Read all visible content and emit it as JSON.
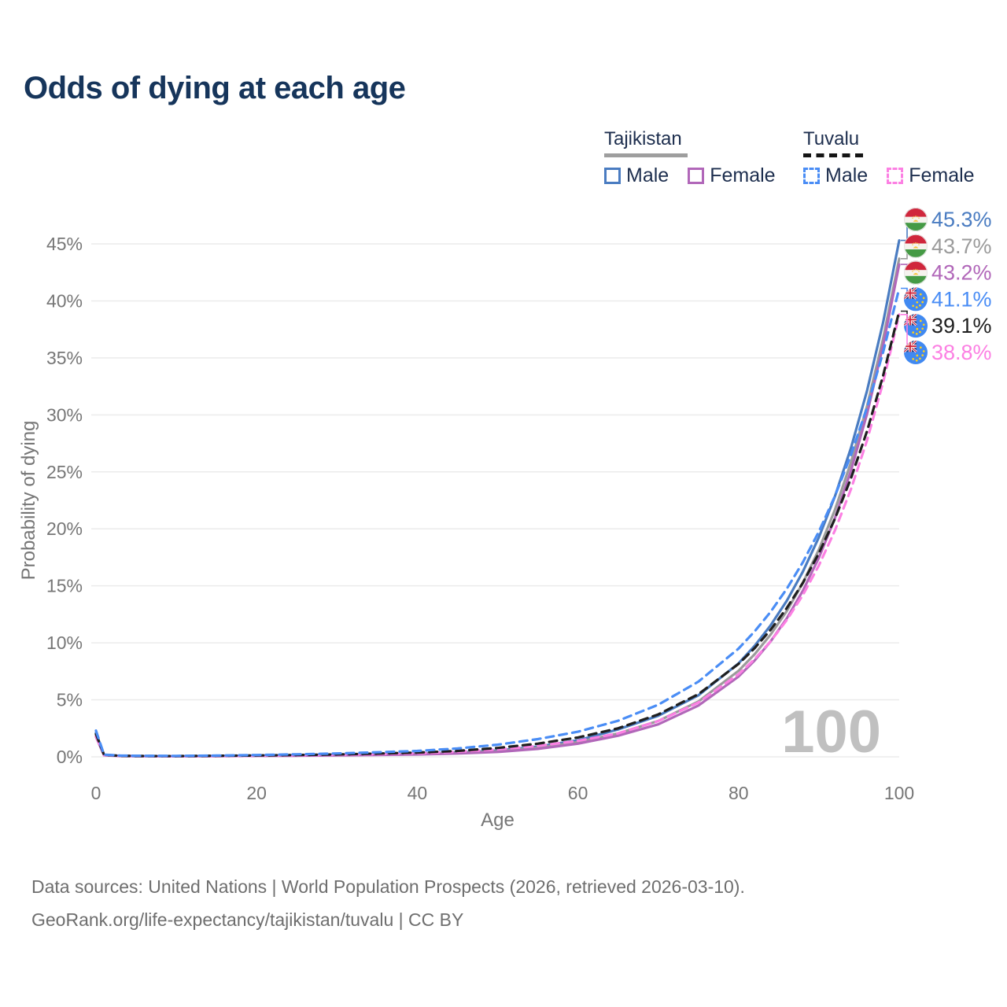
{
  "title": "Odds of dying at each age",
  "legend": {
    "groups": [
      {
        "label": "Tajikistan",
        "style": "solid",
        "underline_color": "#9e9e9e",
        "items": [
          {
            "label": "Male",
            "color": "#4a7cc1",
            "dashed": false
          },
          {
            "label": "Female",
            "color": "#b167b9",
            "dashed": false
          }
        ]
      },
      {
        "label": "Tuvalu",
        "style": "dashed",
        "underline_color": "#151515",
        "items": [
          {
            "label": "Male",
            "color": "#4a8df5",
            "dashed": true
          },
          {
            "label": "Female",
            "color": "#fc80e3",
            "dashed": true
          }
        ]
      }
    ]
  },
  "watermark": "100",
  "footer": {
    "line1": "Data sources: United Nations | World Population Prospects (2026, retrieved 2026-03-10).",
    "line2": "GeoRank.org/life-expectancy/tajikistan/tuvalu | CC BY"
  },
  "chart_data": {
    "type": "line",
    "title": "Odds of dying at each age",
    "xlabel": "Age",
    "ylabel": "Probability of dying",
    "x_ticks": [
      0,
      20,
      40,
      60,
      80,
      100
    ],
    "y_ticks": [
      0,
      5,
      10,
      15,
      20,
      25,
      30,
      35,
      40,
      45
    ],
    "y_tick_suffix": "%",
    "xlim": [
      0,
      100
    ],
    "ylim": [
      0,
      47
    ],
    "grid": true,
    "ages": [
      0,
      1,
      3,
      5,
      10,
      15,
      20,
      25,
      30,
      35,
      40,
      45,
      50,
      55,
      60,
      65,
      70,
      75,
      80,
      82,
      84,
      86,
      88,
      90,
      92,
      94,
      96,
      98,
      100
    ],
    "series": [
      {
        "id": "tajikistan-male",
        "name": "Tajikistan Male",
        "country": "Tajikistan",
        "sex": "Male",
        "color": "#4a7cc1",
        "dashed": false,
        "end_value": 45.3,
        "end_label": "45.3%",
        "values": [
          2.1,
          0.17,
          0.09,
          0.07,
          0.06,
          0.08,
          0.12,
          0.15,
          0.18,
          0.22,
          0.28,
          0.38,
          0.55,
          0.9,
          1.45,
          2.4,
          3.6,
          5.4,
          8.2,
          9.73,
          11.54,
          13.69,
          16.24,
          19.26,
          22.85,
          27.1,
          32.14,
          38.13,
          45.3
        ]
      },
      {
        "id": "tajikistan-total",
        "name": "Tajikistan",
        "country": "Tajikistan",
        "sex": "Both",
        "color": "#9b9b9b",
        "dashed": false,
        "end_value": 43.7,
        "end_label": "43.7%",
        "values": [
          1.9,
          0.16,
          0.08,
          0.06,
          0.05,
          0.07,
          0.1,
          0.13,
          0.16,
          0.2,
          0.25,
          0.34,
          0.5,
          0.8,
          1.3,
          2.05,
          3.15,
          4.85,
          7.55,
          9.0,
          10.73,
          12.79,
          15.25,
          18.18,
          21.67,
          25.83,
          30.79,
          36.7,
          43.7
        ]
      },
      {
        "id": "tajikistan-female",
        "name": "Tajikistan Female",
        "country": "Tajikistan",
        "sex": "Female",
        "color": "#b167b9",
        "dashed": false,
        "end_value": 43.2,
        "end_label": "43.2%",
        "values": [
          1.75,
          0.14,
          0.07,
          0.06,
          0.05,
          0.06,
          0.08,
          0.1,
          0.13,
          0.16,
          0.21,
          0.29,
          0.43,
          0.7,
          1.15,
          1.85,
          2.85,
          4.5,
          7.05,
          8.45,
          10.13,
          12.15,
          14.57,
          17.47,
          20.94,
          25.11,
          30.11,
          36.1,
          43.2
        ]
      },
      {
        "id": "tuvalu-female",
        "name": "Tuvalu Female",
        "country": "Tuvalu",
        "sex": "Female",
        "color": "#fc80e3",
        "dashed": true,
        "end_value": 38.8,
        "end_label": "38.8%",
        "values": [
          1.8,
          0.15,
          0.08,
          0.06,
          0.05,
          0.07,
          0.1,
          0.13,
          0.17,
          0.23,
          0.31,
          0.44,
          0.65,
          0.95,
          1.4,
          2.06,
          3.13,
          4.77,
          7.25,
          8.57,
          10.14,
          12.0,
          14.19,
          16.79,
          19.86,
          23.49,
          27.79,
          32.87,
          38.8
        ]
      },
      {
        "id": "tuvalu-total",
        "name": "Tuvalu",
        "country": "Tuvalu",
        "sex": "Both",
        "color": "#1f1f1f",
        "dashed": true,
        "end_value": 39.1,
        "end_label": "39.1%",
        "values": [
          2.0,
          0.17,
          0.09,
          0.07,
          0.06,
          0.09,
          0.12,
          0.16,
          0.21,
          0.28,
          0.37,
          0.52,
          0.78,
          1.15,
          1.7,
          2.5,
          3.72,
          5.5,
          8.15,
          9.53,
          11.15,
          13.05,
          15.26,
          17.86,
          20.89,
          24.44,
          28.6,
          33.46,
          39.1
        ]
      },
      {
        "id": "tuvalu-male",
        "name": "Tuvalu Male",
        "country": "Tuvalu",
        "sex": "Male",
        "color": "#4a8df5",
        "dashed": true,
        "end_value": 41.1,
        "end_label": "41.1%",
        "values": [
          2.3,
          0.19,
          0.11,
          0.09,
          0.08,
          0.11,
          0.16,
          0.22,
          0.3,
          0.4,
          0.52,
          0.73,
          1.06,
          1.55,
          2.2,
          3.16,
          4.57,
          6.6,
          9.5,
          11.0,
          12.73,
          14.74,
          17.07,
          19.76,
          22.88,
          26.49,
          30.67,
          35.51,
          41.1
        ]
      }
    ],
    "colors": {
      "grid": "#ebebeb",
      "axis_text": "#767676",
      "watermark": "#c0c0c0",
      "tajikistan_flag": {
        "red": "#d0263c",
        "white": "#f5f3ee",
        "green": "#459a45",
        "gold": "#f8c43d"
      },
      "tuvalu_flag": {
        "blue": "#4189f1",
        "navy": "#2b3676",
        "red": "#d0263c",
        "gold": "#ffd116"
      }
    }
  }
}
